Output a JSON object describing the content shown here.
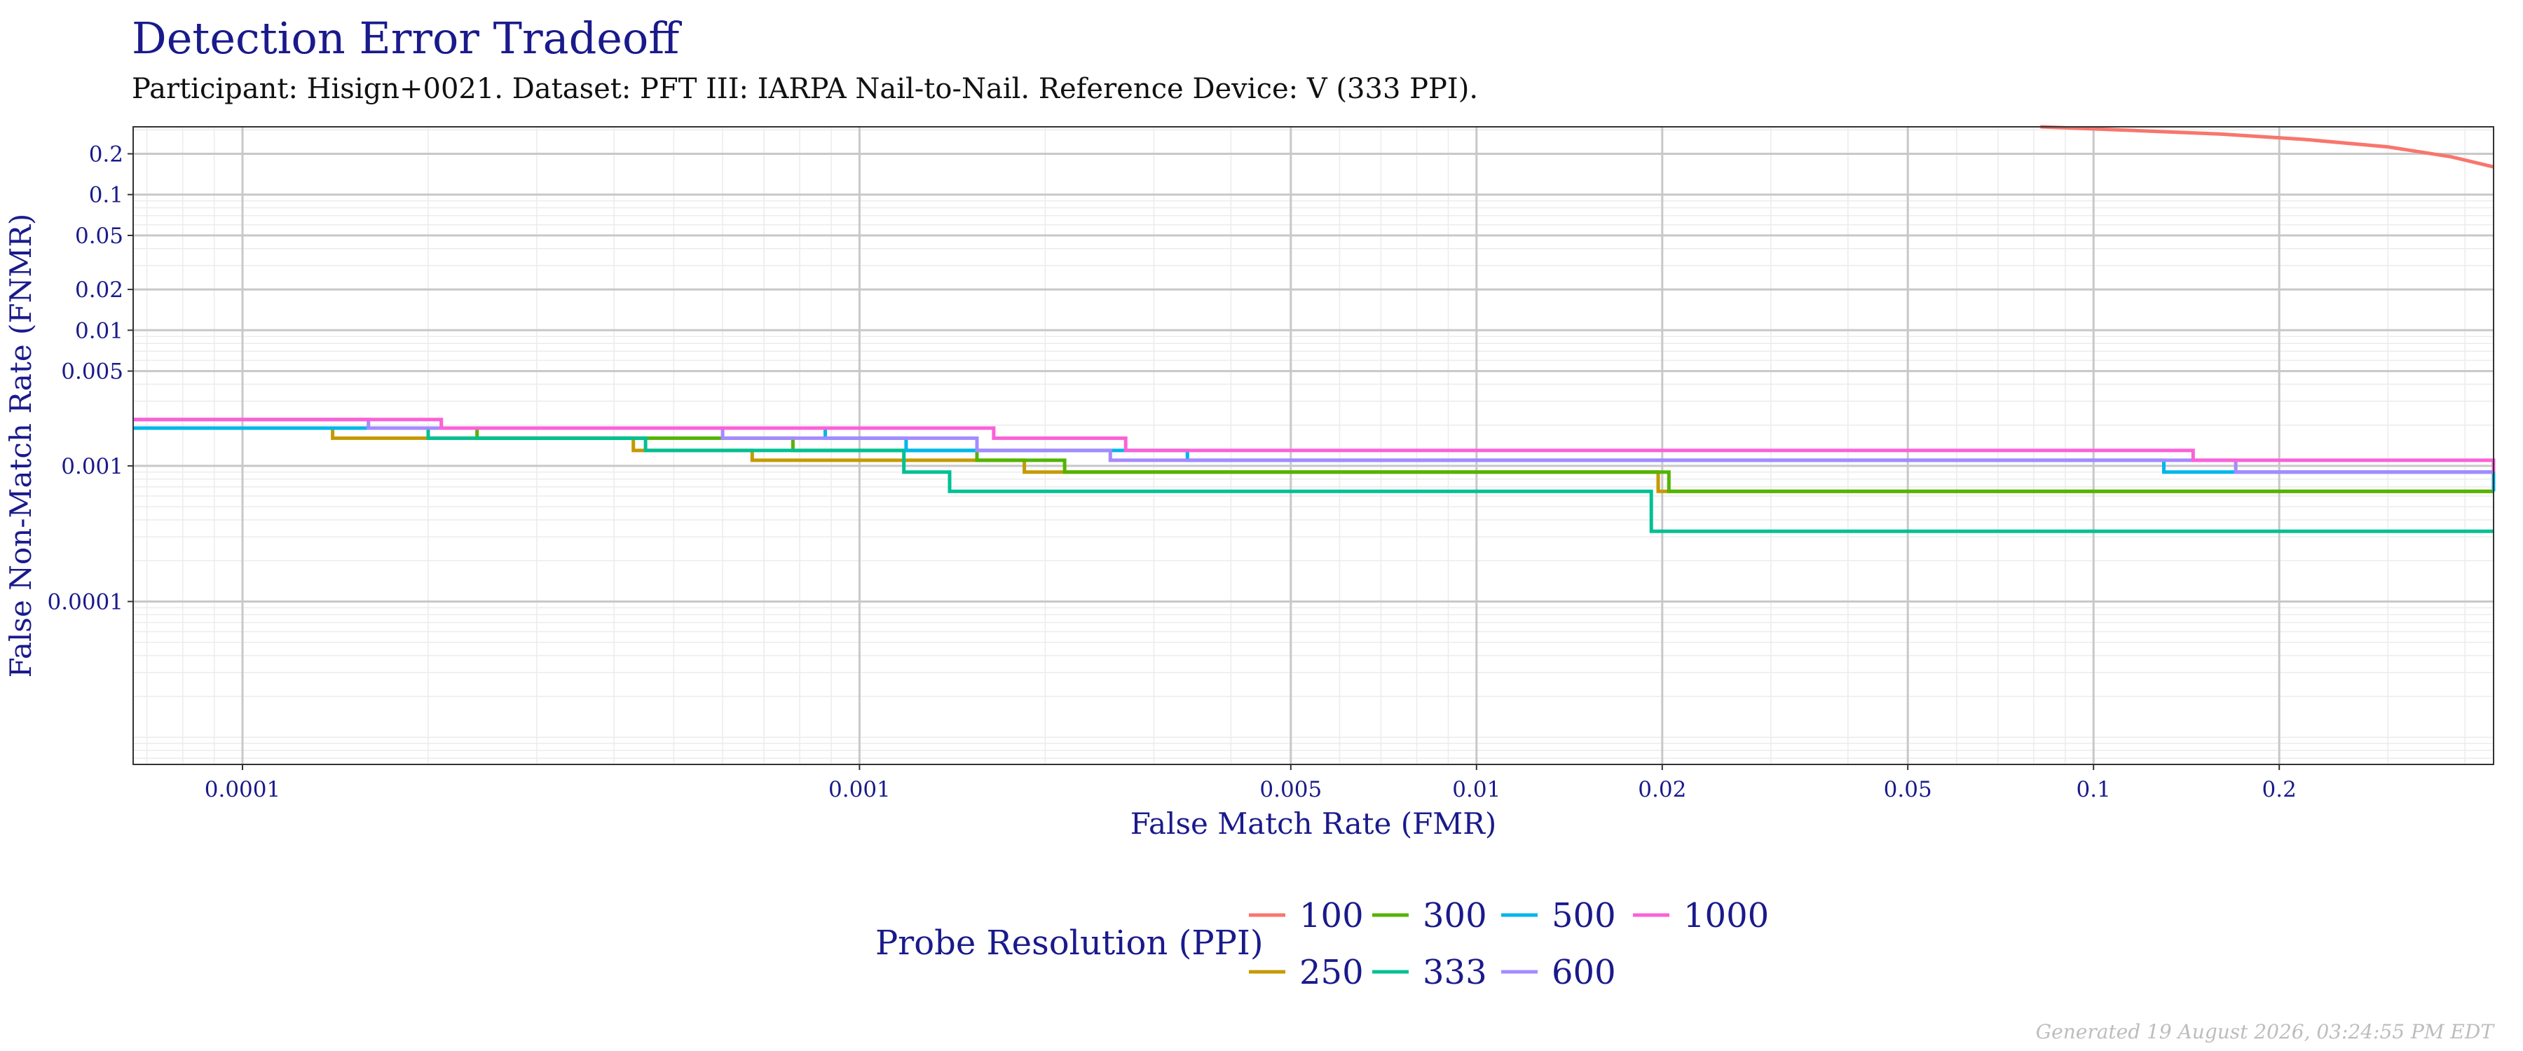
{
  "title": "Detection Error Tradeoff",
  "subtitle": "Participant: Hisign+0021. Dataset: PFT III: IARPA Nail-to-Nail. Reference Device: V (333 PPI).",
  "caption": "Generated 19 August 2026, 03:24:55 PM EDT",
  "colors": {
    "title": "#1a1a8c",
    "grid_major": "#c8c8c8",
    "grid_minor": "#ececec",
    "panel_border": "#333333"
  },
  "chart_data": {
    "type": "line",
    "title": "Detection Error Tradeoff",
    "xlabel": "False Match Rate (FMR)",
    "ylabel": "False Non-Match Rate (FNMR)",
    "x_scale": "log",
    "y_scale": "log",
    "xlim": [
      6.65e-05,
      0.445
    ],
    "ylim": [
      6.3e-06,
      0.316
    ],
    "x_ticks": [
      0.0001,
      0.001,
      0.005,
      0.01,
      0.02,
      0.05,
      0.1,
      0.2
    ],
    "x_tick_labels": [
      "0.0001",
      "0.001",
      "0.005",
      "0.01",
      "0.02",
      "0.05",
      "0.1",
      "0.2"
    ],
    "y_ticks": [
      0.0001,
      0.001,
      0.005,
      0.01,
      0.02,
      0.05,
      0.1,
      0.2
    ],
    "y_tick_labels": [
      "0.0001",
      "0.001",
      "0.005",
      "0.01",
      "0.02",
      "0.05",
      "0.1",
      "0.2"
    ],
    "grid": true,
    "legend": {
      "title": "Probe Resolution (PPI)",
      "position": "bottom"
    },
    "series": [
      {
        "name": "100",
        "color": "#F8766D",
        "step": false,
        "x": [
          0.082,
          0.11,
          0.16,
          0.22,
          0.3,
          0.38,
          0.445
        ],
        "y": [
          0.316,
          0.3,
          0.28,
          0.255,
          0.225,
          0.19,
          0.16
        ]
      },
      {
        "name": "250",
        "color": "#C49A00",
        "step": true,
        "x": [
          6.65e-05,
          0.00014,
          0.00043,
          0.00067,
          0.00185,
          0.0197,
          0.445
        ],
        "y": [
          0.0019,
          0.0016,
          0.0013,
          0.0011,
          0.0009,
          0.00065,
          0.00065
        ]
      },
      {
        "name": "300",
        "color": "#53B400",
        "step": true,
        "x": [
          6.65e-05,
          0.00024,
          0.00078,
          0.00155,
          0.00215,
          0.0205,
          0.445
        ],
        "y": [
          0.0019,
          0.0016,
          0.0013,
          0.0011,
          0.0009,
          0.00065,
          0.00065
        ]
      },
      {
        "name": "333",
        "color": "#00C094",
        "step": true,
        "x": [
          6.65e-05,
          0.0002,
          0.00045,
          0.00118,
          0.0014,
          0.0192,
          0.445
        ],
        "y": [
          0.0019,
          0.0016,
          0.0013,
          0.0009,
          0.00065,
          0.00033,
          0.00033
        ]
      },
      {
        "name": "500",
        "color": "#00B6EB",
        "step": true,
        "x": [
          6.65e-05,
          0.00041,
          0.00088,
          0.00119,
          0.0034,
          0.13,
          0.445
        ],
        "y": [
          0.0019,
          0.0019,
          0.0016,
          0.0013,
          0.0011,
          0.0009,
          0.00065
        ]
      },
      {
        "name": "600",
        "color": "#A58AFF",
        "step": true,
        "x": [
          6.65e-05,
          0.00016,
          0.0006,
          0.00155,
          0.00255,
          0.17,
          0.445
        ],
        "y": [
          0.0022,
          0.0019,
          0.0016,
          0.0013,
          0.0011,
          0.0009,
          0.0009
        ]
      },
      {
        "name": "1000",
        "color": "#FB61D7",
        "step": true,
        "x": [
          6.65e-05,
          0.00021,
          0.00165,
          0.0027,
          0.145,
          0.445
        ],
        "y": [
          0.0022,
          0.0019,
          0.0016,
          0.0013,
          0.0011,
          0.0009
        ]
      }
    ]
  }
}
